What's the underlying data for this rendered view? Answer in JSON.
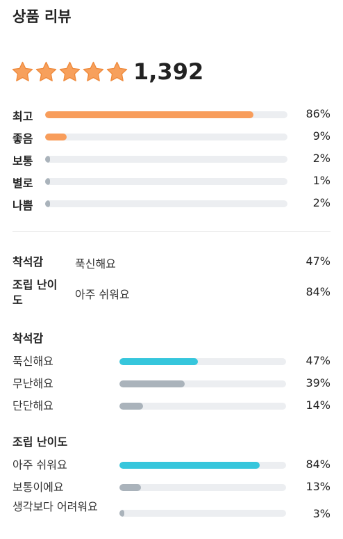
{
  "header": {
    "title": "상품 리뷰"
  },
  "summary": {
    "total_reviews": "1,392",
    "stars_filled": 5,
    "star_color": "#f7a05c",
    "star_stroke": "#ef8a3c"
  },
  "colors": {
    "rating_bar": "#f89d5b",
    "highlight_bar": "#36c6dc",
    "other_bar": "#aab3bb",
    "track": "#eceef1"
  },
  "ratings": [
    {
      "label": "최고",
      "percent": 86,
      "percent_text": "86%"
    },
    {
      "label": "좋음",
      "percent": 9,
      "percent_text": "9%"
    },
    {
      "label": "보통",
      "percent": 2,
      "percent_text": "2%"
    },
    {
      "label": "별로",
      "percent": 1,
      "percent_text": "1%"
    },
    {
      "label": "나쁨",
      "percent": 2,
      "percent_text": "2%"
    }
  ],
  "attribute_summary": [
    {
      "label": "착석감",
      "value": "푹신해요",
      "percent_text": "47%"
    },
    {
      "label": "조립 난이도",
      "value": "아주 쉬워요",
      "percent_text": "84%"
    }
  ],
  "attributes": [
    {
      "title": "착석감",
      "options": [
        {
          "label": "푹신해요",
          "percent": 47,
          "percent_text": "47%",
          "highlight": true
        },
        {
          "label": "무난해요",
          "percent": 39,
          "percent_text": "39%",
          "highlight": false
        },
        {
          "label": "단단해요",
          "percent": 14,
          "percent_text": "14%",
          "highlight": false
        }
      ]
    },
    {
      "title": "조립 난이도",
      "options": [
        {
          "label": "아주 쉬워요",
          "percent": 84,
          "percent_text": "84%",
          "highlight": true
        },
        {
          "label": "보통이에요",
          "percent": 13,
          "percent_text": "13%",
          "highlight": false
        },
        {
          "label": "생각보다 어려워요",
          "percent": 3,
          "percent_text": "3%",
          "highlight": false
        }
      ]
    }
  ]
}
